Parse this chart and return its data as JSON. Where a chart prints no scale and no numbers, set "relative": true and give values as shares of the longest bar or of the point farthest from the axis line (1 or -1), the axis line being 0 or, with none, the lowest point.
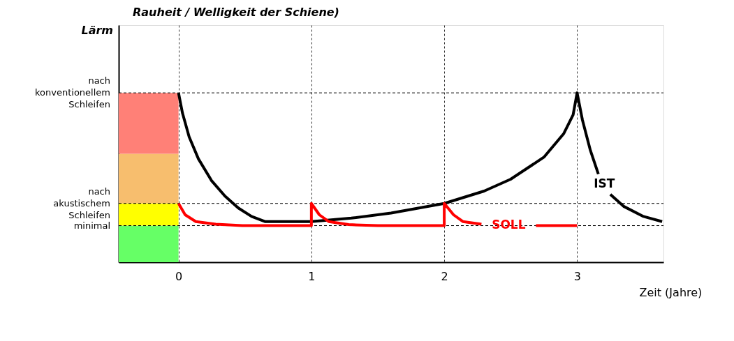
{
  "chart_data": {
    "type": "line",
    "title": "Rauheit / Welligkeit der Schiene)",
    "annotations": [
      "Lärm"
    ],
    "xlabel": "Zeit (Jahre)",
    "relative": true,
    "xlim": [
      -0.45,
      3.65
    ],
    "xticks": [
      0,
      1,
      2,
      3
    ],
    "grid": "x",
    "marker": "none",
    "line_style": "solid",
    "series": [
      {
        "name": "IST",
        "color": "#000000",
        "x": [
          0,
          0.03,
          0.08,
          0.15,
          0.25,
          0.35,
          0.45,
          0.55,
          0.65,
          1.0,
          1.3,
          1.6,
          2.0,
          2.3,
          2.5,
          2.75,
          2.9,
          2.97,
          3.0,
          3.04,
          3.1,
          3.16,
          3.2,
          3.25,
          3.35,
          3.5,
          3.64
        ],
        "values": [
          1,
          0.88,
          0.74,
          0.61,
          0.48,
          0.39,
          0.32,
          0.27,
          0.24,
          0.24,
          0.26,
          0.29,
          0.347,
          0.42,
          0.49,
          0.62,
          0.76,
          0.87,
          1,
          0.84,
          0.66,
          0.52,
          null,
          0.4,
          0.33,
          0.27,
          0.24
        ]
      },
      {
        "name": "SOLL",
        "color": "#ff0000",
        "x": [
          0,
          0.05,
          0.13,
          0.28,
          0.48,
          1,
          1,
          1.06,
          1.13,
          1.28,
          1.5,
          2,
          2,
          2.07,
          2.14,
          2.28,
          2.48,
          2.69,
          3.0
        ],
        "values": [
          0.347,
          0.28,
          0.24,
          0.224,
          0.216,
          0.216,
          0.347,
          0.28,
          0.24,
          0.222,
          0.216,
          0.216,
          0.347,
          0.28,
          0.24,
          0.224,
          null,
          0.216,
          0.216
        ]
      }
    ],
    "ref_lines": [
      {
        "axis": "y",
        "value": 1,
        "label": "nach konventionellem Schleifen",
        "line_style": "dashed"
      },
      {
        "axis": "y",
        "value": 0.347,
        "label": "nach akustischem Schleifen",
        "line_style": "dashed"
      },
      {
        "axis": "y",
        "value": 0.216,
        "label": "minimal",
        "line_style": "dashed"
      }
    ],
    "bands": [
      {
        "axis": "y",
        "from": 0,
        "to": 0.216,
        "color": "#66ff66"
      },
      {
        "axis": "y",
        "from": 0.216,
        "to": 0.347,
        "color": "#ffff00"
      },
      {
        "axis": "y",
        "from": 0.347,
        "to": 0.64,
        "color": "#f7be6e"
      },
      {
        "axis": "y",
        "from": 0.64,
        "to": 1,
        "color": "#ff8077"
      }
    ]
  }
}
